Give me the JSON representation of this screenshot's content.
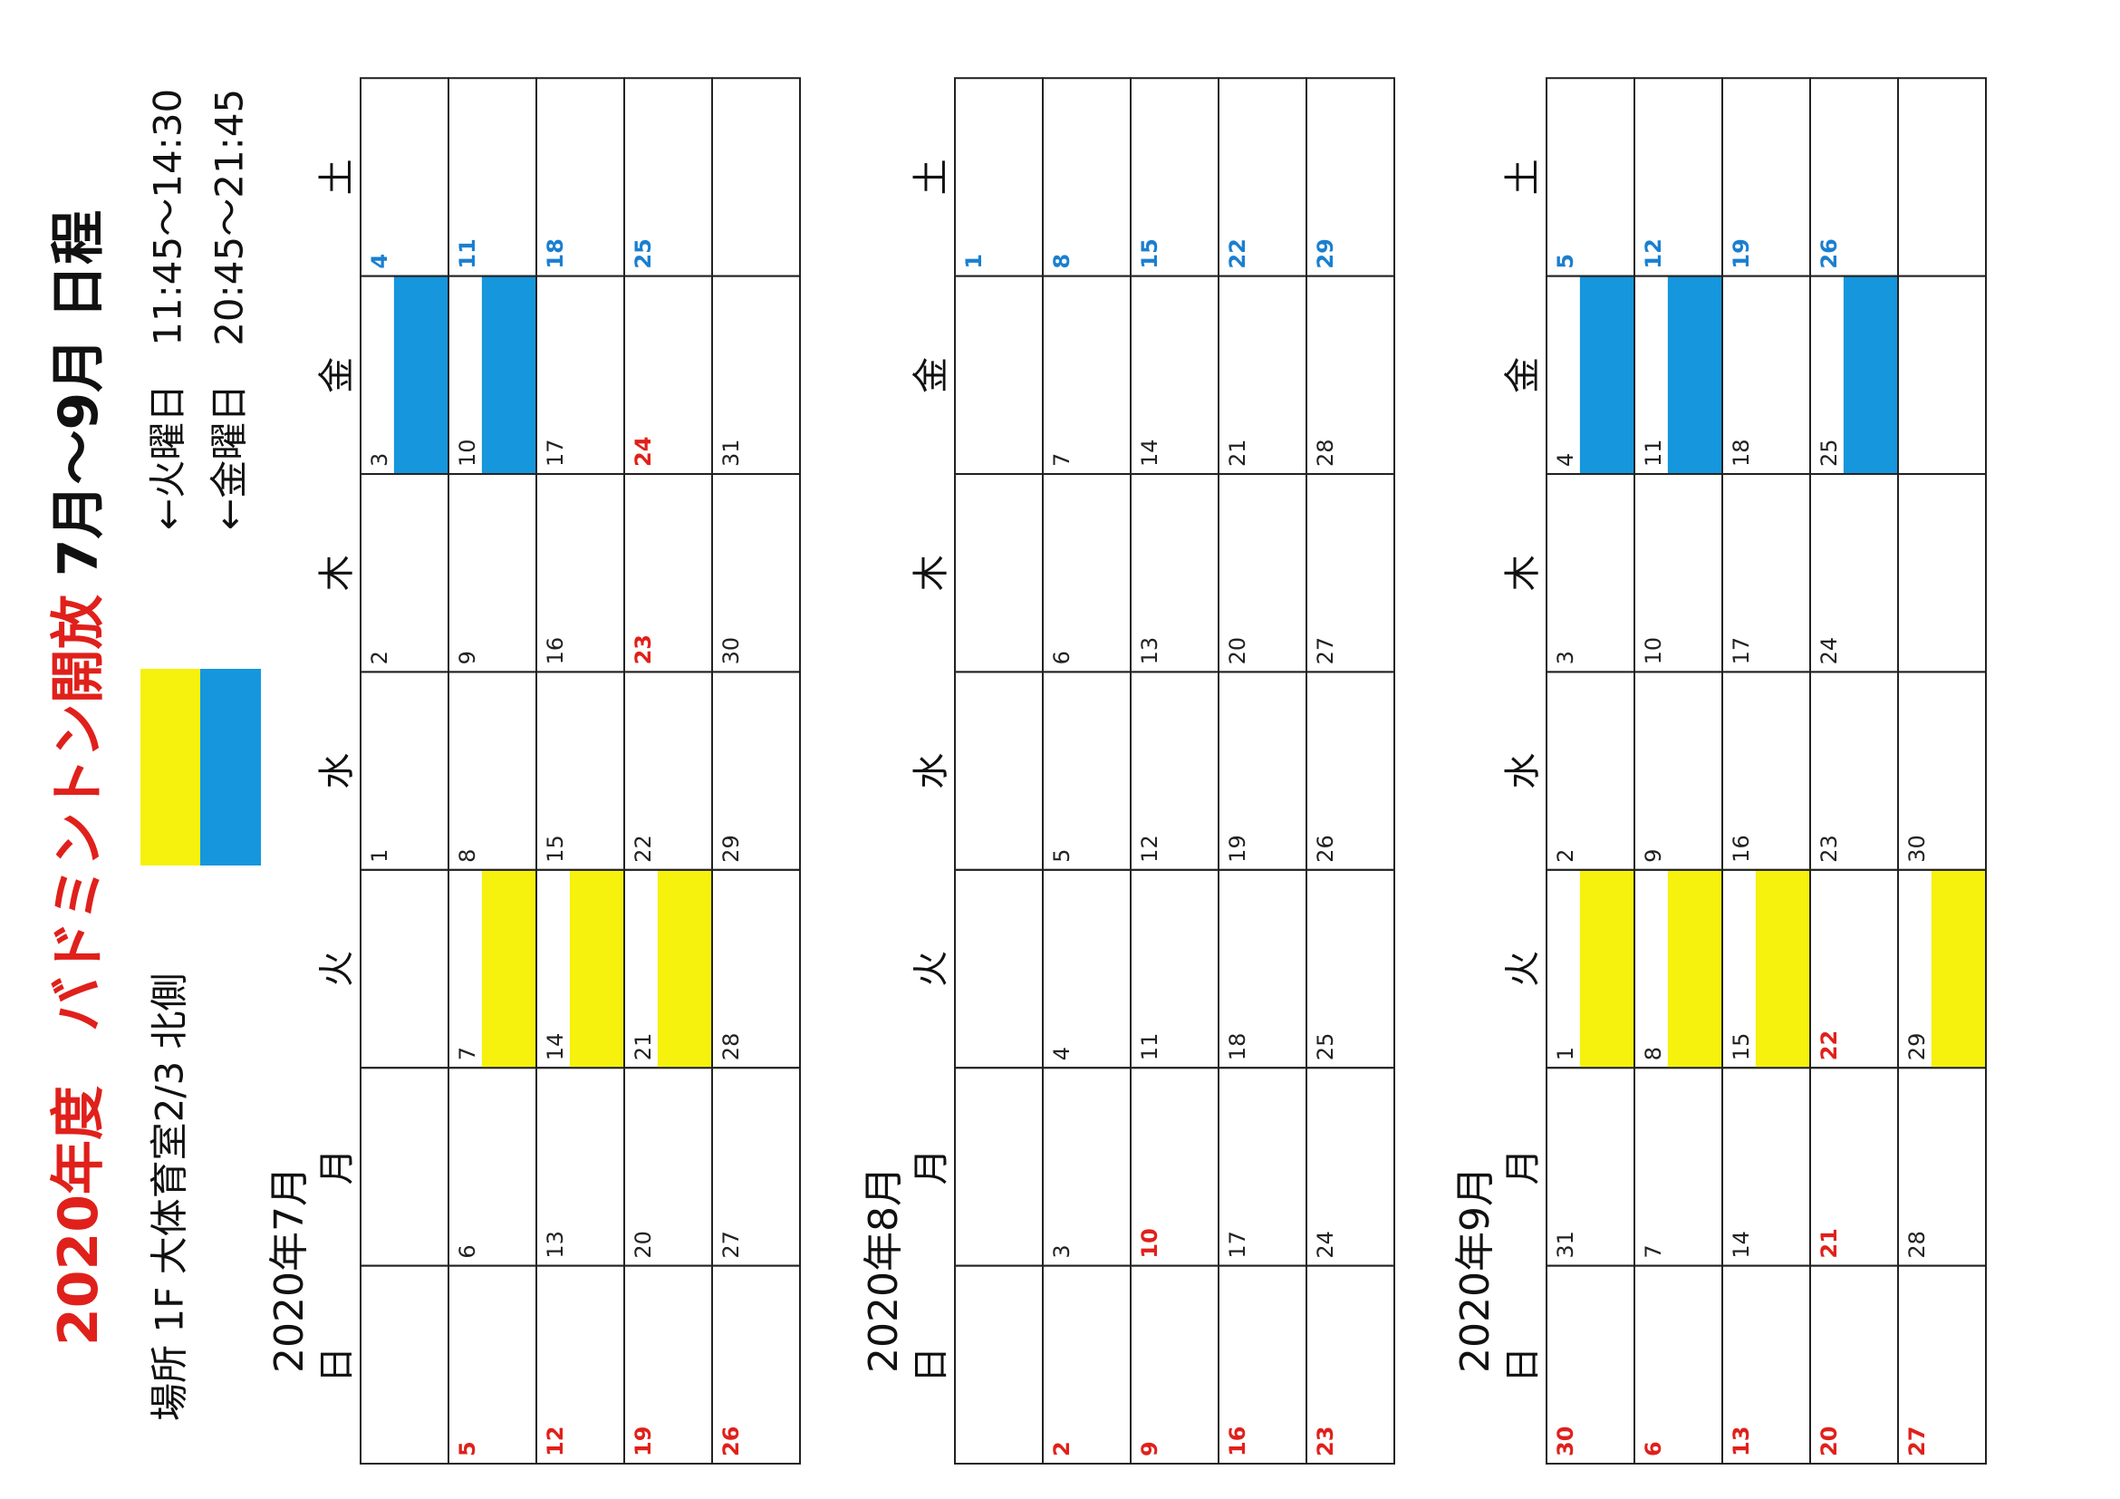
{
  "header": {
    "title_red": "2020年度　バドミントン開放",
    "title_black": "7月～9月 日程",
    "location": "場所 1F 大体育室2/3 北側",
    "legend": [
      "←火曜日　11:45～14:30",
      "←金曜日　20:45～21:45"
    ]
  },
  "calendars": [
    {
      "label": "2020年7月",
      "weekdays": [
        "日",
        "月",
        "火",
        "水",
        "木",
        "金",
        "土"
      ],
      "weeks": [
        [
          null,
          null,
          null,
          1,
          2,
          3,
          4
        ],
        [
          5,
          6,
          7,
          8,
          9,
          10,
          11
        ],
        [
          12,
          13,
          14,
          15,
          16,
          17,
          18
        ],
        [
          19,
          20,
          21,
          22,
          23,
          24,
          25
        ],
        [
          26,
          27,
          28,
          29,
          30,
          31,
          null
        ]
      ],
      "holidays": [
        23,
        24
      ],
      "yellow": [
        7,
        14,
        21
      ],
      "blue": [
        3,
        10
      ]
    },
    {
      "label": "2020年8月",
      "weekdays": [
        "日",
        "月",
        "火",
        "水",
        "木",
        "金",
        "土"
      ],
      "weeks": [
        [
          null,
          null,
          null,
          null,
          null,
          null,
          1
        ],
        [
          2,
          3,
          4,
          5,
          6,
          7,
          8
        ],
        [
          9,
          10,
          11,
          12,
          13,
          14,
          15
        ],
        [
          16,
          17,
          18,
          19,
          20,
          21,
          22
        ],
        [
          23,
          24,
          25,
          26,
          27,
          28,
          29
        ]
      ],
      "holidays": [
        10
      ],
      "yellow": [],
      "blue": []
    },
    {
      "label": "2020年9月",
      "weekdays": [
        "日",
        "月",
        "火",
        "水",
        "木",
        "金",
        "土"
      ],
      "weeks": [
        [
          30,
          31,
          1,
          2,
          3,
          4,
          5
        ],
        [
          6,
          7,
          8,
          9,
          10,
          11,
          12
        ],
        [
          13,
          14,
          15,
          16,
          17,
          18,
          19
        ],
        [
          20,
          21,
          22,
          23,
          24,
          25,
          26
        ],
        [
          27,
          28,
          29,
          30,
          null,
          null,
          null
        ]
      ],
      "holidays": [
        21,
        22
      ],
      "yellow": [
        1,
        8,
        15,
        29
      ],
      "blue": [
        4,
        11,
        25
      ]
    }
  ]
}
